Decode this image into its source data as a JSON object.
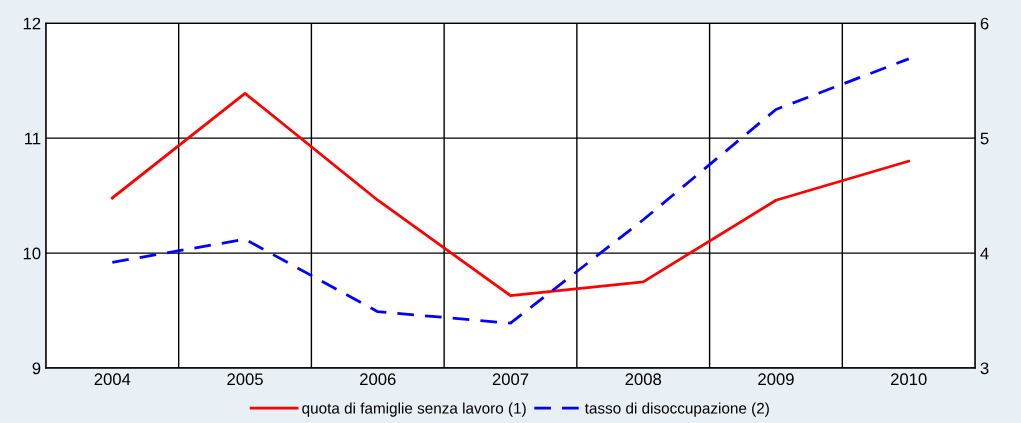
{
  "chart_data": {
    "type": "line",
    "categories": [
      "2004",
      "2005",
      "2006",
      "2007",
      "2008",
      "2009",
      "2010"
    ],
    "series": [
      {
        "name": "quota di famiglie senza lavoro (1)",
        "color": "#ff0000",
        "line_style": "solid",
        "values": [
          10.48,
          11.39,
          10.46,
          9.63,
          9.75,
          10.46,
          10.8
        ]
      },
      {
        "name": "tasso di disoccupazione (2)",
        "color": "#0000ff",
        "line_style": "dashed",
        "axis": "y2",
        "values": [
          3.92,
          4.12,
          3.49,
          3.39,
          4.29,
          5.25,
          5.69
        ]
      }
    ],
    "ylim": [
      9,
      12
    ],
    "yticks": [
      9,
      10,
      11,
      12
    ],
    "y2lim": [
      3,
      6
    ],
    "y2ticks": [
      3,
      4,
      5,
      6
    ],
    "grid": true,
    "legend": "bottom",
    "marker": "none"
  }
}
